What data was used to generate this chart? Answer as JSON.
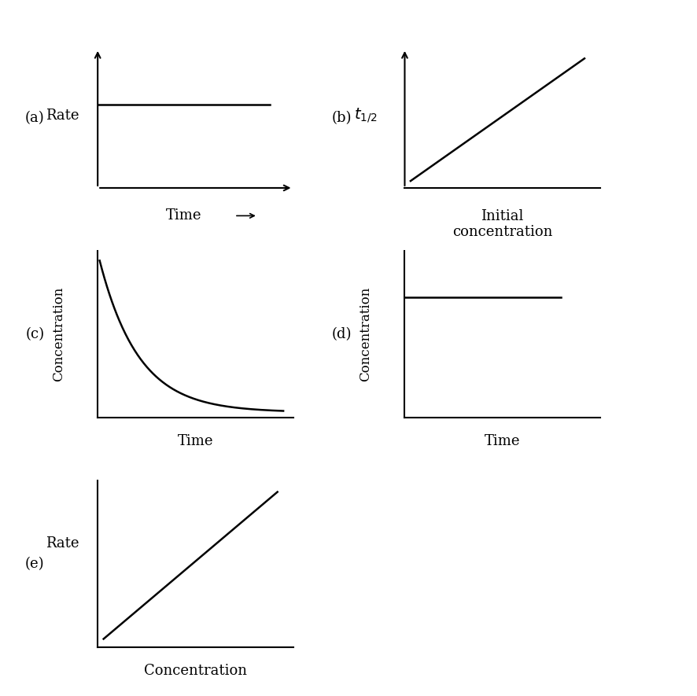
{
  "background_color": "#ffffff",
  "line_color": "#000000",
  "axes_specs": {
    "a": [
      0.14,
      0.73,
      0.28,
      0.2
    ],
    "b": [
      0.58,
      0.73,
      0.28,
      0.2
    ],
    "c": [
      0.14,
      0.4,
      0.28,
      0.24
    ],
    "d": [
      0.58,
      0.4,
      0.28,
      0.24
    ],
    "e": [
      0.14,
      0.07,
      0.28,
      0.24
    ]
  },
  "panel_labels": {
    "a": "(a)",
    "b": "(b)",
    "c": "(c)",
    "d": "(d)",
    "e": "(e)"
  },
  "font_size_axis": 13,
  "font_size_panel": 13
}
